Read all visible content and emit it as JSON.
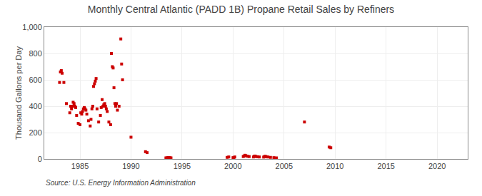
{
  "chart_data": {
    "type": "scatter",
    "title": "Monthly Central Atlantic (PADD 1B) Propane Retail Sales by Refiners",
    "ylabel": "Thousand Gallons per Day",
    "annotations": [
      "Source: U.S. Energy Information Administration"
    ],
    "color": "#cc0000",
    "marker": "square",
    "grid": true,
    "xlim": [
      1981.5,
      2023
    ],
    "ylim": [
      0,
      1000
    ],
    "xticks": [
      1985,
      1990,
      1995,
      2000,
      2005,
      2010,
      2015,
      2020
    ],
    "yticks": [
      0,
      200,
      400,
      600,
      800,
      {
        "value": 1000,
        "label": "1,000"
      }
    ],
    "x": [
      1983.0,
      1983.08,
      1983.17,
      1983.25,
      1983.42,
      1983.67,
      1984.0,
      1984.08,
      1984.17,
      1984.25,
      1984.33,
      1984.42,
      1984.5,
      1984.58,
      1984.67,
      1984.83,
      1985.0,
      1985.08,
      1985.17,
      1985.25,
      1985.33,
      1985.42,
      1985.5,
      1985.58,
      1985.67,
      1985.83,
      1986.0,
      1986.08,
      1986.17,
      1986.25,
      1986.33,
      1986.42,
      1986.5,
      1986.58,
      1986.67,
      1986.83,
      1987.0,
      1987.08,
      1987.17,
      1987.25,
      1987.33,
      1987.42,
      1987.5,
      1987.58,
      1987.67,
      1987.83,
      1988.0,
      1988.08,
      1988.17,
      1988.25,
      1988.33,
      1988.42,
      1988.5,
      1988.58,
      1988.67,
      1988.83,
      1989.0,
      1989.08,
      1989.17,
      1990.0,
      1991.42,
      1991.58,
      1993.42,
      1993.5,
      1993.58,
      1993.67,
      1993.75,
      1993.83,
      1993.92,
      1999.42,
      1999.58,
      2000.0,
      2000.08,
      2000.17,
      2001.0,
      2001.08,
      2001.17,
      2001.25,
      2001.42,
      2001.58,
      2002.0,
      2002.08,
      2002.17,
      2002.25,
      2002.42,
      2002.58,
      2003.0,
      2003.08,
      2003.17,
      2003.25,
      2003.42,
      2003.67,
      2004.0,
      2004.25,
      2007.0,
      2009.42,
      2009.58
    ],
    "values": [
      580,
      660,
      670,
      650,
      580,
      420,
      350,
      400,
      380,
      400,
      430,
      420,
      400,
      390,
      330,
      270,
      260,
      350,
      340,
      360,
      380,
      390,
      380,
      370,
      340,
      290,
      250,
      300,
      380,
      400,
      550,
      570,
      590,
      610,
      380,
      280,
      330,
      390,
      450,
      400,
      410,
      420,
      400,
      380,
      360,
      280,
      260,
      800,
      700,
      690,
      540,
      420,
      400,
      420,
      370,
      400,
      910,
      720,
      600,
      165,
      55,
      48,
      8,
      7,
      9,
      10,
      8,
      9,
      8,
      12,
      15,
      10,
      8,
      15,
      18,
      22,
      28,
      25,
      20,
      18,
      15,
      20,
      22,
      18,
      16,
      15,
      14,
      18,
      20,
      16,
      15,
      12,
      10,
      8,
      280,
      90,
      85
    ]
  }
}
